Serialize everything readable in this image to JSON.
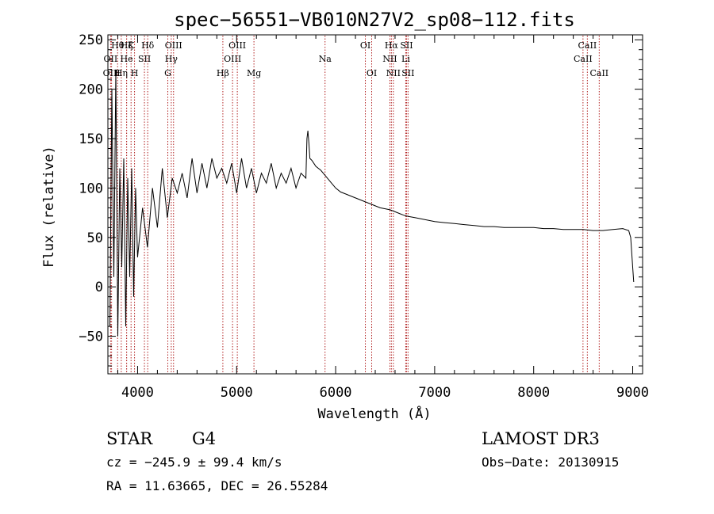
{
  "chart_data": {
    "type": "line",
    "title": "spec−56551−VB010N27V2_sp08−112.fits",
    "xlabel": "Wavelength (Å)",
    "ylabel": "Flux (relative)",
    "xlim": [
      3700,
      9100
    ],
    "ylim": [
      -88,
      255
    ],
    "x_ticks": [
      {
        "value": 4000,
        "label": "4000"
      },
      {
        "value": 5000,
        "label": "5000"
      },
      {
        "value": 6000,
        "label": "6000"
      },
      {
        "value": 7000,
        "label": "7000"
      },
      {
        "value": 8000,
        "label": "8000"
      },
      {
        "value": 9000,
        "label": "9000"
      }
    ],
    "y_ticks": [
      {
        "value": -50,
        "label": "−50"
      },
      {
        "value": 0,
        "label": "0"
      },
      {
        "value": 50,
        "label": "50"
      },
      {
        "value": 100,
        "label": "100"
      },
      {
        "value": 150,
        "label": "150"
      },
      {
        "value": 200,
        "label": "200"
      },
      {
        "value": 250,
        "label": "250"
      }
    ],
    "spectrum": {
      "name": "flux",
      "color": "#000000",
      "x": [
        3720,
        3740,
        3760,
        3780,
        3800,
        3820,
        3840,
        3860,
        3880,
        3900,
        3920,
        3940,
        3960,
        3980,
        4000,
        4050,
        4100,
        4150,
        4200,
        4250,
        4300,
        4350,
        4400,
        4450,
        4500,
        4550,
        4600,
        4650,
        4700,
        4750,
        4800,
        4850,
        4900,
        4950,
        5000,
        5050,
        5100,
        5150,
        5200,
        5250,
        5300,
        5350,
        5400,
        5450,
        5500,
        5550,
        5600,
        5650,
        5700,
        5710,
        5720,
        5730,
        5740,
        5760,
        5780,
        5800,
        5850,
        5900,
        5950,
        6000,
        6050,
        6100,
        6150,
        6200,
        6250,
        6300,
        6350,
        6400,
        6450,
        6500,
        6550,
        6600,
        6650,
        6700,
        6750,
        6800,
        6900,
        7000,
        7100,
        7200,
        7300,
        7400,
        7500,
        7600,
        7700,
        7800,
        7900,
        8000,
        8100,
        8200,
        8300,
        8400,
        8500,
        8600,
        8700,
        8800,
        8900,
        8960,
        8980,
        9000,
        9010
      ],
      "y": [
        -40,
        200,
        10,
        220,
        -50,
        120,
        20,
        130,
        -40,
        110,
        10,
        120,
        -10,
        100,
        30,
        80,
        40,
        100,
        60,
        120,
        70,
        110,
        95,
        115,
        90,
        130,
        95,
        125,
        100,
        130,
        110,
        120,
        105,
        125,
        95,
        130,
        100,
        120,
        95,
        115,
        105,
        125,
        100,
        115,
        105,
        120,
        100,
        115,
        110,
        150,
        158,
        145,
        130,
        128,
        125,
        122,
        118,
        112,
        106,
        100,
        96,
        94,
        92,
        90,
        88,
        86,
        84,
        82,
        80,
        79,
        78,
        76,
        74,
        72,
        71,
        70,
        68,
        66,
        65,
        64,
        63,
        62,
        61,
        61,
        60,
        60,
        60,
        60,
        59,
        59,
        58,
        58,
        58,
        57,
        57,
        58,
        59,
        57,
        50,
        20,
        5
      ]
    },
    "lines": [
      {
        "label": "Hθ",
        "x": 3798,
        "row": 1
      },
      {
        "label": "OII",
        "x": 3727,
        "row": 2
      },
      {
        "label": "OIII",
        "x": 3737,
        "row": 3
      },
      {
        "label": "Hη",
        "x": 3835,
        "row": 3
      },
      {
        "label": "Hζ",
        "x": 3889,
        "row": 1
      },
      {
        "label": "He",
        "x": 3889,
        "row": 2
      },
      {
        "label": "K",
        "x": 3934,
        "row": 1
      },
      {
        "label": "H",
        "x": 3969,
        "row": 3
      },
      {
        "label": "SII",
        "x": 4069,
        "row": 2
      },
      {
        "label": "Hδ",
        "x": 4102,
        "row": 1
      },
      {
        "label": "G",
        "x": 4305,
        "row": 3
      },
      {
        "label": "Hγ",
        "x": 4340,
        "row": 2
      },
      {
        "label": "OIII",
        "x": 4363,
        "row": 1
      },
      {
        "label": "Hβ",
        "x": 4861,
        "row": 3
      },
      {
        "label": "OIII",
        "x": 4959,
        "row": 2
      },
      {
        "label": "OIII",
        "x": 5007,
        "row": 1
      },
      {
        "label": "Mg",
        "x": 5175,
        "row": 3
      },
      {
        "label": "Na",
        "x": 5893,
        "row": 2
      },
      {
        "label": "OI",
        "x": 6300,
        "row": 1
      },
      {
        "label": "OI",
        "x": 6364,
        "row": 3
      },
      {
        "label": "NII",
        "x": 6548,
        "row": 2
      },
      {
        "label": "Hα",
        "x": 6563,
        "row": 1
      },
      {
        "label": "NII",
        "x": 6583,
        "row": 3
      },
      {
        "label": "Li",
        "x": 6708,
        "row": 2
      },
      {
        "label": "SII",
        "x": 6716,
        "row": 1
      },
      {
        "label": "SII",
        "x": 6731,
        "row": 3
      },
      {
        "label": "CaII",
        "x": 8498,
        "row": 2
      },
      {
        "label": "CaII",
        "x": 8542,
        "row": 1
      },
      {
        "label": "CaII",
        "x": 8662,
        "row": 3
      }
    ]
  },
  "info": {
    "object_class": "STAR",
    "subclass": "G4",
    "survey": "LAMOST DR3",
    "redshift_text": "cz = −245.9 ± 99.4 km/s",
    "obs_date": "Obs−Date: 20130915",
    "coords": "RA =  11.63665, DEC =  26.55284"
  },
  "colors": {
    "line_marker": "#b22222",
    "spectrum": "#000000"
  }
}
